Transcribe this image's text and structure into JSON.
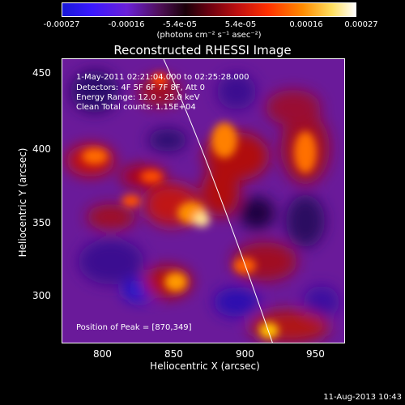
{
  "colorbar": {
    "ticks": [
      "-0.00027",
      "-0.00016",
      "-5.4e-05",
      "5.4e-05",
      "0.00016",
      "0.00027"
    ],
    "unit": "(photons cm⁻² s⁻¹ asec⁻²)"
  },
  "title": "Reconstructed RHESSI Image",
  "info": {
    "time_range": "1-May-2011 02:21:04.000 to 02:25:28.000",
    "detectors": "Detectors: 4F 5F 6F 7F 8F, Att 0",
    "energy": "Energy Range: 12.0 - 25.0 keV",
    "clean": "Clean     Total counts: 1.15E+04",
    "peak": "Position of Peak = [870,349]"
  },
  "axes": {
    "xlabel": "Heliocentric X (arcsec)",
    "ylabel": "Heliocentric Y (arcsec)",
    "xticks": [
      "800",
      "850",
      "900",
      "950"
    ],
    "yticks": [
      "450",
      "400",
      "350",
      "300"
    ]
  },
  "footer": "11-Aug-2013 10:43",
  "colors": {
    "colorbar_stops": [
      "#1010e0",
      "#2a10ff",
      "#6a18c8",
      "#3a0020",
      "#b00010",
      "#ff2a00",
      "#ff9a00",
      "#ffffff"
    ]
  }
}
